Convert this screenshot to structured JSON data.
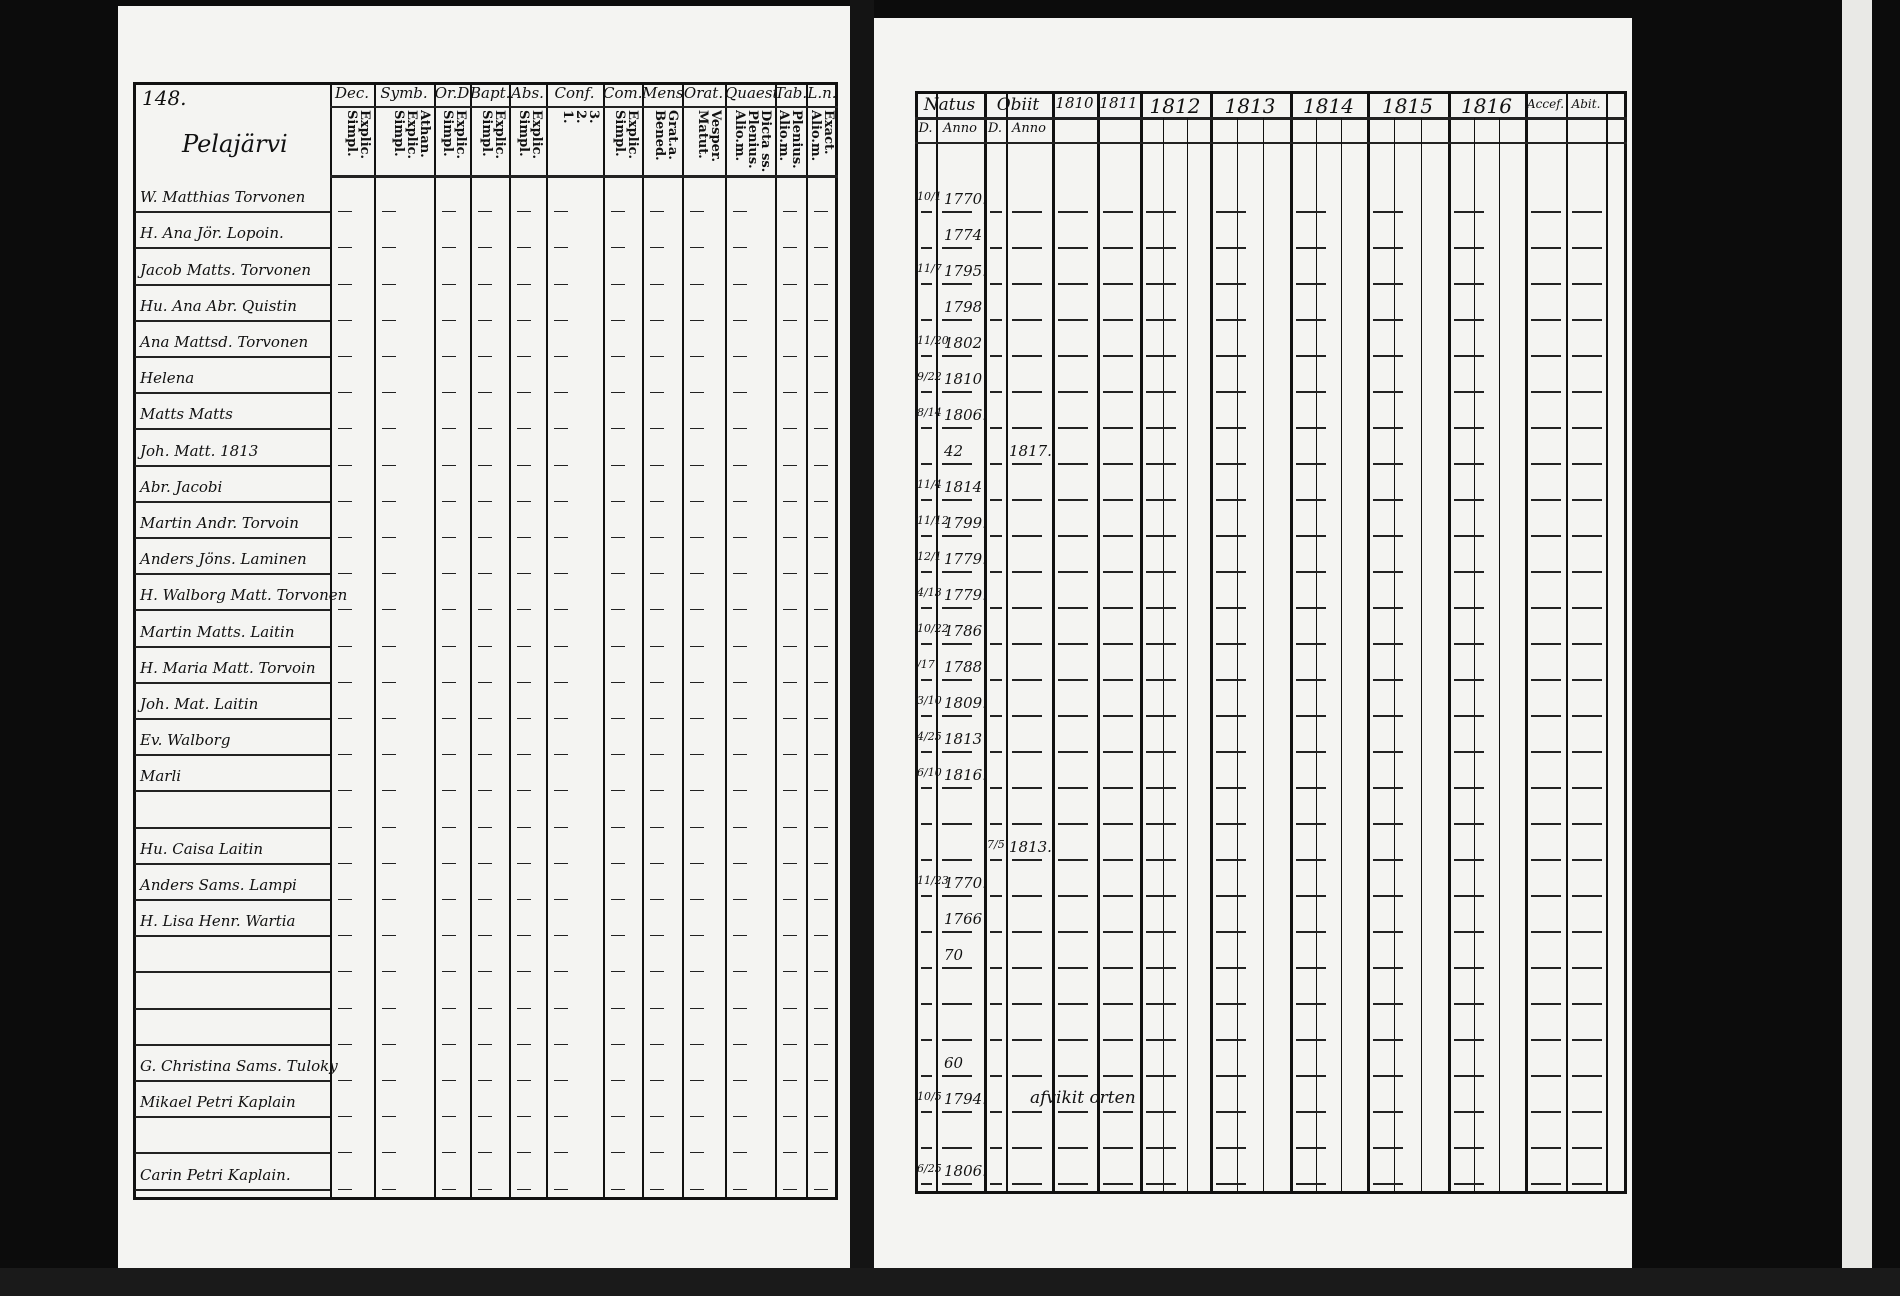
{
  "left_page": {
    "page_number": "148.",
    "village": "Pelajärvi",
    "columns": [
      {
        "label": "Dec.",
        "sub": "Explic.\nSimpl."
      },
      {
        "label": "Symb.",
        "sub": "Athan.\nExplic.\nSimpl."
      },
      {
        "label": "Or.D",
        "sub": "Explic.\nSimpl."
      },
      {
        "label": "Bapt.",
        "sub": "Explic.\nSimpl."
      },
      {
        "label": "Abs.",
        "sub": "Explic.\nSimpl."
      },
      {
        "label": "Conf.",
        "sub": "3.\n2.\n1."
      },
      {
        "label": "Com.D",
        "sub": "Explic.\nSimpl."
      },
      {
        "label": "Mens.",
        "sub": "Grat.a.\nBened."
      },
      {
        "label": "Orat.",
        "sub": "Vesper.\nMatut."
      },
      {
        "label": "Quaest.",
        "sub": "Dicta ss.\nPlenius.\nAlio.m."
      },
      {
        "label": "Tab.",
        "sub": "Plenius.\nAlio.m."
      },
      {
        "label": "L.n.",
        "sub": "Exact.\nAlio.m."
      }
    ],
    "rows": [
      "W. Matthias Torvonen",
      "H. Ana Jör. Lopoin.",
      "Jacob Matts. Torvonen",
      "Hu. Ana Abr. Quistin",
      "Ana Mattsd. Torvonen",
      "Helena",
      "Matts Matts",
      "Joh. Matt. 1813",
      "Abr. Jacobi",
      "Martin Andr. Torvoin",
      "Anders Jöns. Laminen",
      "H. Walborg Matt. Torvonen",
      "Martin Matts. Laitin",
      "H. Maria Matt. Torvoin",
      "Joh. Mat. Laitin",
      "Ev. Walborg",
      "Marli",
      "",
      "Hu. Caisa Laitin",
      "Anders Sams. Lampi",
      "H. Lisa Henr. Wartia",
      "",
      "",
      "",
      "G. Christina Sams. Tuloky",
      "Mikael Petri Kaplain",
      "",
      "Carin Petri Kaplain."
    ]
  },
  "right_page": {
    "headers": {
      "natus": "Natus",
      "obiit": "Obiit",
      "natus_day": "D.",
      "natus_year": "Anno",
      "obiit_day": "D.",
      "obiit_year": "Anno",
      "years": [
        "1810",
        "1811",
        "1812",
        "1813",
        "1814",
        "1815",
        "1816"
      ],
      "accessit": "Accef.",
      "abiit": "Abit."
    },
    "rows": [
      {
        "d": "10/1",
        "y": "1770."
      },
      {
        "d": "",
        "y": "1774"
      },
      {
        "d": "11/7",
        "y": "1795."
      },
      {
        "d": "",
        "y": "1798"
      },
      {
        "d": "11/20",
        "y": "1802"
      },
      {
        "d": "9/22",
        "y": "1810"
      },
      {
        "d": "8/14",
        "y": "1806."
      },
      {
        "d": "",
        "y": "42",
        "od": "",
        "oy": "1817."
      },
      {
        "d": "11/4",
        "y": "1814"
      },
      {
        "d": "11/12",
        "y": "1799."
      },
      {
        "d": "12/1",
        "y": "1779."
      },
      {
        "d": "4/13",
        "y": "1779."
      },
      {
        "d": "10/22",
        "y": "1786"
      },
      {
        "d": "/17",
        "y": "1788"
      },
      {
        "d": "3/10",
        "y": "1809."
      },
      {
        "d": "4/25",
        "y": "1813"
      },
      {
        "d": "6/10",
        "y": "1816."
      },
      {
        "d": "",
        "y": ""
      },
      {
        "d": "",
        "y": "",
        "od": "7/5",
        "oy": "1813."
      },
      {
        "d": "11/23",
        "y": "1770."
      },
      {
        "d": "",
        "y": "1766"
      },
      {
        "d": "",
        "y": "70"
      },
      {
        "d": "",
        "y": ""
      },
      {
        "d": "",
        "y": ""
      },
      {
        "d": "",
        "y": "60"
      },
      {
        "d": "10/5",
        "y": "1794.",
        "note": "afvikit orten"
      },
      {
        "d": "",
        "y": ""
      },
      {
        "d": "6/25",
        "y": "1806."
      }
    ]
  }
}
